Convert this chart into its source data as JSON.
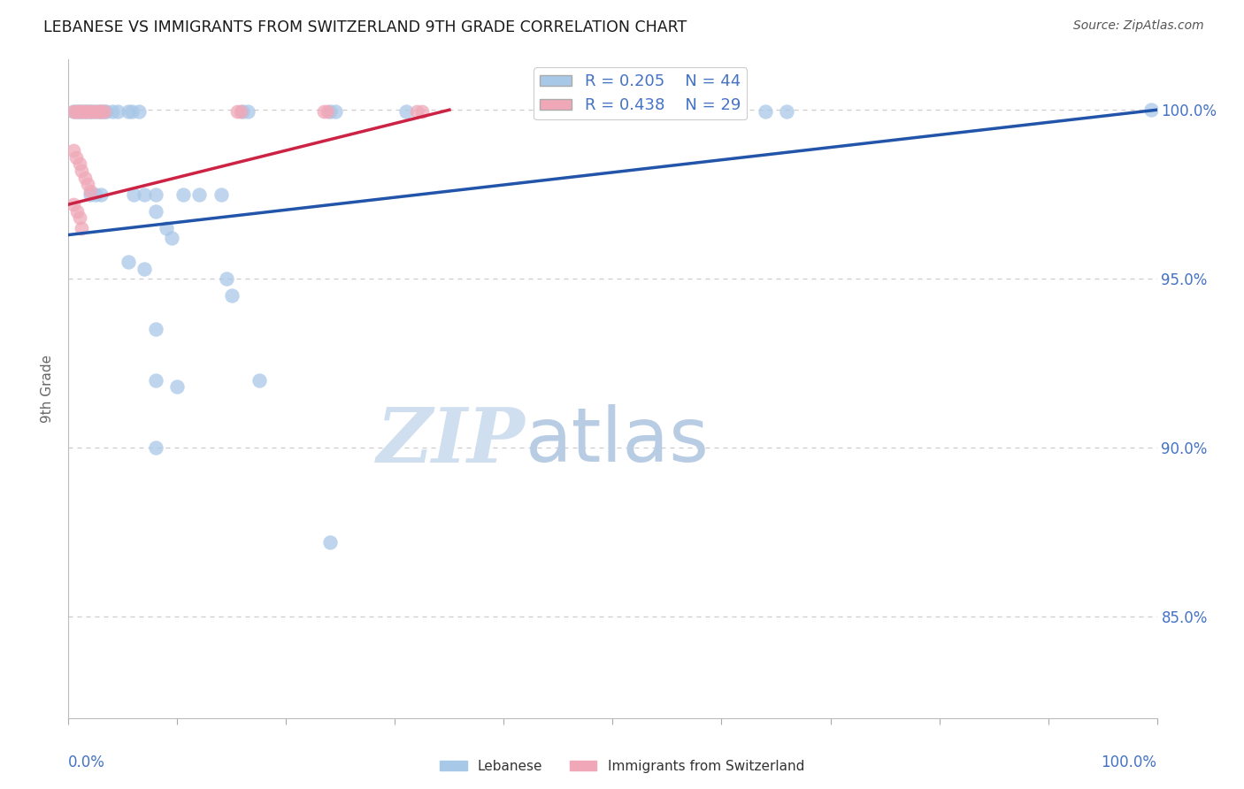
{
  "title": "LEBANESE VS IMMIGRANTS FROM SWITZERLAND 9TH GRADE CORRELATION CHART",
  "source": "Source: ZipAtlas.com",
  "ylabel": "9th Grade",
  "gridline_vals": [
    0.85,
    0.9,
    0.95,
    1.0
  ],
  "gridline_labels": [
    "85.0%",
    "90.0%",
    "95.0%",
    "100.0%"
  ],
  "xlim": [
    0.0,
    1.0
  ],
  "ylim": [
    0.82,
    1.015
  ],
  "blue_color": "#a8c8e8",
  "pink_color": "#f0a8b8",
  "blue_line_color": "#2255aa",
  "pink_line_color": "#cc2244",
  "axis_color": "#4472c4",
  "title_color": "#1a1a1a",
  "source_color": "#555555",
  "watermark_zip_color": "#d0dff0",
  "watermark_atlas_color": "#b8cce4",
  "bg_color": "#ffffff",
  "blue_trend_x": [
    0.0,
    1.0
  ],
  "blue_trend_y": [
    0.963,
    1.0
  ],
  "pink_trend_x": [
    0.0,
    0.35
  ],
  "pink_trend_y": [
    0.972,
    1.0
  ],
  "blue_points": [
    [
      0.005,
      0.9995
    ],
    [
      0.008,
      0.9995
    ],
    [
      0.01,
      0.9995
    ],
    [
      0.012,
      0.9995
    ],
    [
      0.015,
      0.9995
    ],
    [
      0.018,
      0.9995
    ],
    [
      0.02,
      0.9995
    ],
    [
      0.022,
      0.9995
    ],
    [
      0.025,
      0.9995
    ],
    [
      0.028,
      0.9995
    ],
    [
      0.03,
      0.9995
    ],
    [
      0.032,
      0.9995
    ],
    [
      0.035,
      0.9995
    ],
    [
      0.04,
      0.9995
    ],
    [
      0.045,
      0.9995
    ],
    [
      0.055,
      0.9995
    ],
    [
      0.058,
      0.9995
    ],
    [
      0.065,
      0.9995
    ],
    [
      0.16,
      0.9995
    ],
    [
      0.165,
      0.9995
    ],
    [
      0.24,
      0.9995
    ],
    [
      0.245,
      0.9995
    ],
    [
      0.31,
      0.9995
    ],
    [
      0.64,
      0.9995
    ],
    [
      0.66,
      0.9995
    ],
    [
      0.995,
      1.0
    ],
    [
      0.02,
      0.975
    ],
    [
      0.025,
      0.975
    ],
    [
      0.03,
      0.975
    ],
    [
      0.06,
      0.975
    ],
    [
      0.07,
      0.975
    ],
    [
      0.08,
      0.975
    ],
    [
      0.105,
      0.975
    ],
    [
      0.12,
      0.975
    ],
    [
      0.14,
      0.975
    ],
    [
      0.08,
      0.97
    ],
    [
      0.09,
      0.965
    ],
    [
      0.095,
      0.962
    ],
    [
      0.055,
      0.955
    ],
    [
      0.07,
      0.953
    ],
    [
      0.145,
      0.95
    ],
    [
      0.15,
      0.945
    ],
    [
      0.08,
      0.935
    ],
    [
      0.08,
      0.92
    ],
    [
      0.1,
      0.918
    ],
    [
      0.175,
      0.92
    ],
    [
      0.08,
      0.9
    ],
    [
      0.24,
      0.872
    ]
  ],
  "pink_points": [
    [
      0.005,
      0.9995
    ],
    [
      0.007,
      0.9995
    ],
    [
      0.009,
      0.9995
    ],
    [
      0.012,
      0.9995
    ],
    [
      0.014,
      0.9995
    ],
    [
      0.016,
      0.9995
    ],
    [
      0.019,
      0.9995
    ],
    [
      0.022,
      0.9995
    ],
    [
      0.025,
      0.9995
    ],
    [
      0.028,
      0.9995
    ],
    [
      0.03,
      0.9995
    ],
    [
      0.033,
      0.9995
    ],
    [
      0.155,
      0.9995
    ],
    [
      0.158,
      0.9995
    ],
    [
      0.235,
      0.9995
    ],
    [
      0.238,
      0.9995
    ],
    [
      0.32,
      0.9995
    ],
    [
      0.325,
      0.9995
    ],
    [
      0.005,
      0.988
    ],
    [
      0.007,
      0.986
    ],
    [
      0.01,
      0.984
    ],
    [
      0.012,
      0.982
    ],
    [
      0.015,
      0.98
    ],
    [
      0.018,
      0.978
    ],
    [
      0.02,
      0.976
    ],
    [
      0.005,
      0.972
    ],
    [
      0.008,
      0.97
    ],
    [
      0.01,
      0.968
    ],
    [
      0.012,
      0.965
    ]
  ]
}
